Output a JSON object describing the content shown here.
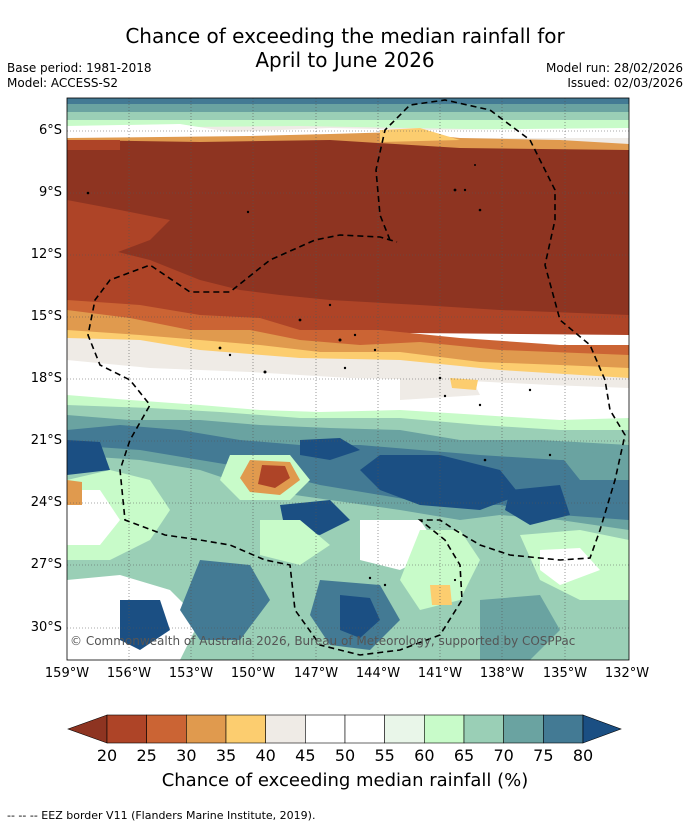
{
  "title_line1": "Chance of exceeding the median rainfall for",
  "title_line2": "April to June 2026",
  "meta_left": [
    "Base period: 1981-2018",
    "Model: ACCESS-S2"
  ],
  "meta_right": [
    "Model run: 28/02/2026",
    "Issued: 02/03/2026"
  ],
  "lat_ticks": [
    "6°S",
    "9°S",
    "12°S",
    "15°S",
    "18°S",
    "21°S",
    "24°S",
    "27°S",
    "30°S"
  ],
  "lon_ticks": [
    "159°W",
    "156°W",
    "153°W",
    "150°W",
    "147°W",
    "144°W",
    "141°W",
    "138°W",
    "135°W",
    "132°W"
  ],
  "copyright": "© Commonwealth of Australia 2026, Bureau of Meteorology, supported by COSPPac",
  "colorbar": {
    "ticks": [
      "20",
      "25",
      "30",
      "35",
      "40",
      "45",
      "50",
      "55",
      "60",
      "65",
      "70",
      "75",
      "80"
    ],
    "colors": [
      "#8e3421",
      "#ae4427",
      "#cb6434",
      "#e09a4e",
      "#fccd6f",
      "#efebe6",
      "#ffffff",
      "#ffffff",
      "#e9f6e9",
      "#c8fbc9",
      "#9acfb6",
      "#6aa3a1",
      "#437a94",
      "#1b4f83"
    ],
    "label": "Chance of exceeding median rainfall (%)"
  },
  "footer": "--  --  -- EEZ border V11 (Flanders Marine Institute, 2019)."
}
